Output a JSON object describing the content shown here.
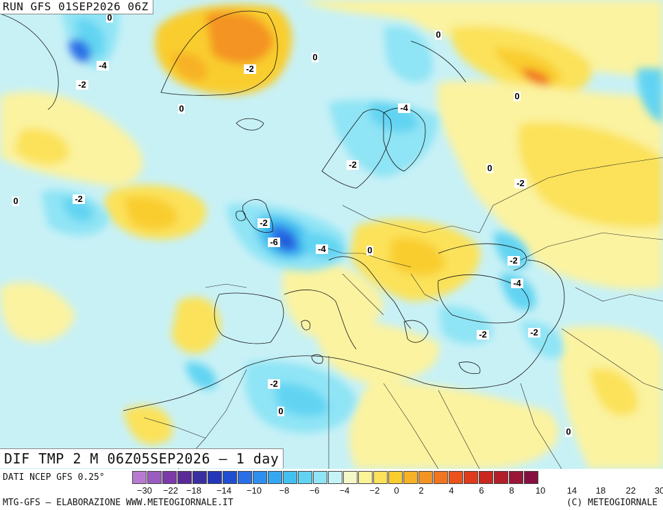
{
  "map": {
    "run_title": "RUN GFS 01SEP2026 06Z",
    "field_title": "DIF TMP 2 M 06Z05SEP2026 – 1 day",
    "region": "Europe, North Atlantic, North Africa, Middle East",
    "contour_labels": [
      "0",
      "-2",
      "-4",
      "-6",
      "-2",
      "0",
      "-2",
      "-4",
      "0",
      "-2"
    ]
  },
  "legend": {
    "source": "DATI NCEP GFS 0.25°",
    "tick_labels": [
      "-30",
      "-22",
      "-18",
      "-14",
      "-10",
      "-8",
      "-6",
      "-4",
      "-2",
      "0",
      "2",
      "4",
      "6",
      "8",
      "10",
      "14",
      "18",
      "22",
      "30"
    ],
    "colors": [
      "#b97bd1",
      "#9b5cc0",
      "#7b3aa8",
      "#5a2a96",
      "#3a2fa0",
      "#2336b8",
      "#1f4fd0",
      "#2a6fe6",
      "#2f8fef",
      "#36a8f2",
      "#42c0f0",
      "#62d4f2",
      "#8fe4f5",
      "#c6f3f8",
      "#f4f8c6",
      "#fbf496",
      "#fbe25a",
      "#f9cd2e",
      "#f7b126",
      "#f49424",
      "#f17520",
      "#ec531c",
      "#e03a1c",
      "#c9281e",
      "#b21e2a",
      "#9a1636",
      "#85103f"
    ]
  },
  "footer": {
    "credit_left": "MTG-GFS – ELABORAZIONE WWW.METEOGIORNALE.IT",
    "credit_right": "(C) METEOGIORNALE"
  }
}
